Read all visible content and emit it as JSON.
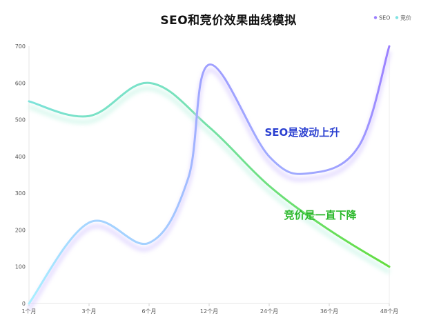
{
  "chart_data": {
    "type": "line",
    "title": "SEO和竞价效果曲线模拟",
    "xlabel": "",
    "ylabel": "",
    "categories": [
      "1个月",
      "3个月",
      "6个月",
      "12个月",
      "24个月",
      "36个月",
      "48个月"
    ],
    "ylim": [
      0,
      700
    ],
    "yticks": [
      0,
      100,
      200,
      300,
      400,
      500,
      600,
      700
    ],
    "grid": false,
    "legend_position": "top-right",
    "series": [
      {
        "name": "SEO",
        "color_start": "#a8f0ff",
        "color_end": "#9b7fff",
        "points": [
          {
            "x": 0,
            "y": 0
          },
          {
            "x": 1,
            "y": 220
          },
          {
            "x": 2,
            "y": 165
          },
          {
            "x": 2.65,
            "y": 340
          },
          {
            "x": 3,
            "y": 650
          },
          {
            "x": 4,
            "y": 400
          },
          {
            "x": 4.7,
            "y": 355
          },
          {
            "x": 5.5,
            "y": 430
          },
          {
            "x": 6,
            "y": 700
          }
        ]
      },
      {
        "name": "竞价",
        "color_start": "#7fe3e3",
        "color_end": "#63dd3f",
        "points": [
          {
            "x": 0,
            "y": 550
          },
          {
            "x": 1,
            "y": 510
          },
          {
            "x": 2,
            "y": 600
          },
          {
            "x": 3,
            "y": 480
          },
          {
            "x": 4,
            "y": 320
          },
          {
            "x": 5,
            "y": 200
          },
          {
            "x": 6,
            "y": 100
          }
        ]
      }
    ],
    "annotations": [
      {
        "text": "SEO是波动上升",
        "x": 4.55,
        "y": 430,
        "color": "#2a3fd0"
      },
      {
        "text": "竞价是一直下降",
        "x": 4.85,
        "y": 205,
        "color": "#2bb82b"
      }
    ]
  }
}
